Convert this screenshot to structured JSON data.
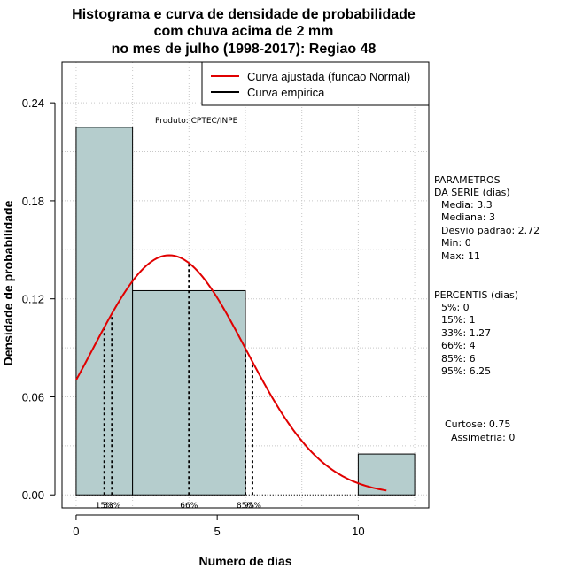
{
  "chart_data": {
    "type": "bar",
    "title_lines": [
      "Histograma e curva de densidade de probabilidade",
      "com chuva acima de 2 mm",
      "no mes de julho (1998-2017): Regiao 48"
    ],
    "xlabel": "Numero de dias",
    "ylabel": "Densidade de probabilidade",
    "xlim": [
      -0.5,
      12.5
    ],
    "ylim": [
      -0.008,
      0.265
    ],
    "x_ticks": [
      0,
      5,
      10
    ],
    "y_ticks": [
      0.0,
      0.06,
      0.12,
      0.18,
      0.24
    ],
    "x_tick_labels": [
      "0",
      "5",
      "10"
    ],
    "y_tick_labels": [
      "0.00",
      "0.06",
      "0.12",
      "0.18",
      "0.24"
    ],
    "grid": true,
    "bins": [
      {
        "start": 0,
        "end": 2,
        "density": 0.225
      },
      {
        "start": 2,
        "end": 6,
        "density": 0.125
      },
      {
        "start": 6,
        "end": 10,
        "density": 0.0
      },
      {
        "start": 10,
        "end": 12,
        "density": 0.025
      }
    ],
    "bar_color": "#b5cdcd",
    "curve_color": "#e00000",
    "normal_fit": {
      "mean": 3.3,
      "sd": 2.72,
      "x_from": 0,
      "x_to": 11
    },
    "percentile_lines": [
      {
        "label": "15%",
        "x": 1
      },
      {
        "label": "33%",
        "x": 1.27
      },
      {
        "label": "66%",
        "x": 4
      },
      {
        "label": "85%",
        "x": 6
      },
      {
        "label": "95%",
        "x": 6.25
      }
    ],
    "legend": {
      "position": "top-right",
      "entries": [
        {
          "label": "Curva ajustada (funcao Normal)",
          "color": "#e00000"
        },
        {
          "label": "Curva empirica",
          "color": "#000000"
        }
      ]
    },
    "annotation": "Produto: CPTEC/INPE"
  },
  "side_panel": {
    "params_title_1": "PARAMETROS",
    "params_title_2": "DA SERIE (dias)",
    "media": "Media: 3.3",
    "mediana": "Mediana: 3",
    "desvio": "Desvio padrao: 2.72",
    "min": "Min: 0",
    "max": "Max: 11",
    "perc_title": "PERCENTIS (dias)",
    "p5": "5%: 0",
    "p15": "15%: 1",
    "p33": "33%: 1.27",
    "p66": "66%: 4",
    "p85": "85%: 6",
    "p95": "95%: 6.25",
    "curtose": "Curtose: 0.75",
    "assimetria": "Assimetria: 0"
  }
}
